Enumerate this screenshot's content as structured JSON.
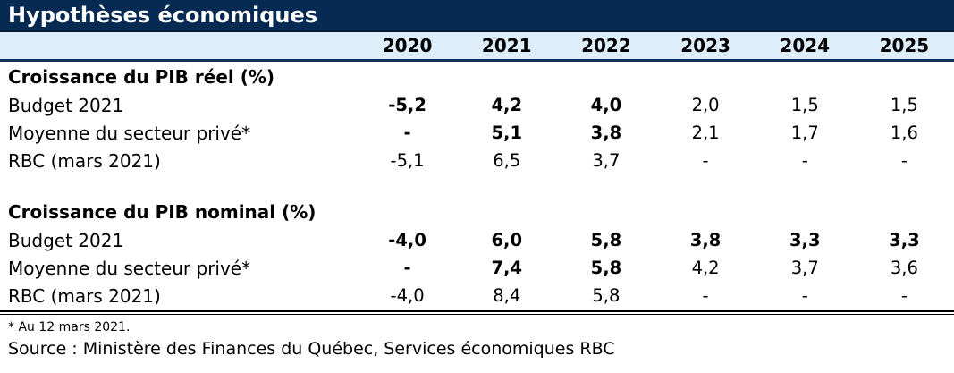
{
  "colors": {
    "title_bar_bg": "#062a52",
    "title_text": "#ffffff",
    "year_header_bg": "#ddedf9",
    "header_underline": "#12315c",
    "text": "#000000"
  },
  "chart_data": {
    "type": "table",
    "title": "Hypothèses économiques",
    "columns": [
      "",
      "2020",
      "2021",
      "2022",
      "2023",
      "2024",
      "2025"
    ],
    "sections": [
      {
        "header": "Croissance du PIB réel (%)",
        "rows": [
          [
            "Budget 2021",
            "-5,2",
            "4,2",
            "4,0",
            "2,0",
            "1,5",
            "1,5"
          ],
          [
            "Moyenne du secteur privé*",
            "-",
            "5,1",
            "3,8",
            "2,1",
            "1,7",
            "1,6"
          ],
          [
            "RBC (mars 2021)",
            "-5,1",
            "6,5",
            "3,7",
            "-",
            "-",
            "-"
          ]
        ]
      },
      {
        "header": "Croissance du PIB nominal (%)",
        "rows": [
          [
            "Budget 2021",
            "-4,0",
            "6,0",
            "5,8",
            "3,8",
            "3,3",
            "3,3"
          ],
          [
            "Moyenne du secteur privé*",
            "-",
            "7,4",
            "5,8",
            "4,2",
            "3,7",
            "3,6"
          ],
          [
            "RBC (mars 2021)",
            "-4,0",
            "8,4",
            "5,8",
            "-",
            "-",
            "-"
          ]
        ]
      }
    ],
    "footnote": "* Au 12 mars 2021.",
    "source": "Source : Ministère des Finances du Québec, Services économiques RBC"
  }
}
